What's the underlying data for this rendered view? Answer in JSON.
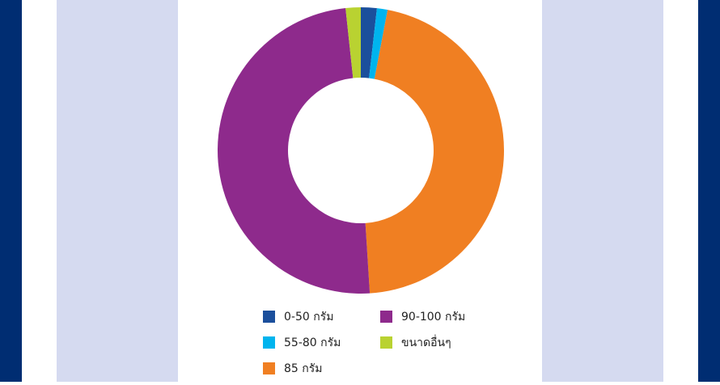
{
  "chart_data": {
    "type": "donut",
    "categories": [
      "0-50 กรัม",
      "55-80 กรัม",
      "85 กรัม",
      "90-100 กรัม",
      "ขนาดอื่นๆ"
    ],
    "values": [
      1.8,
      1.2,
      46,
      49.3,
      1.7
    ],
    "colors": [
      "#1b4f9c",
      "#00b4ee",
      "#f07f22",
      "#8e2a8c",
      "#b9d231"
    ]
  }
}
